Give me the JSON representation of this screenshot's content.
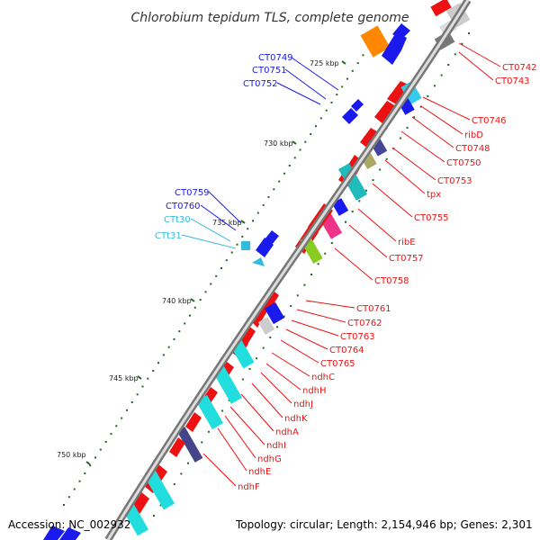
{
  "title": "Chlorobium tepidum TLS, complete genome",
  "footer": {
    "accession": "Accession: NC_002932",
    "summary": "Topology: circular; Length: 2,154,946 bp; Genes: 2,301"
  },
  "ticks": [
    "725 kbp",
    "730 kbp",
    "735 kbp",
    "740 kbp",
    "745 kbp",
    "750 kbp"
  ],
  "colors": {
    "cds_forward": "#1a1aee",
    "cds_reverse": "#ee1111",
    "trna": "#33bbdd",
    "backbone": "#888888",
    "gc_tick": "#226622"
  },
  "left_labels": [
    {
      "text": "CT0749",
      "kind": "cds_forward"
    },
    {
      "text": "CT0751",
      "kind": "cds_forward"
    },
    {
      "text": "CT0752",
      "kind": "cds_forward"
    },
    {
      "text": "CT0759",
      "kind": "cds_forward"
    },
    {
      "text": "CT0760",
      "kind": "cds_forward"
    },
    {
      "text": "CTt30",
      "kind": "trna"
    },
    {
      "text": "CTt31",
      "kind": "trna"
    }
  ],
  "right_labels": [
    "CT0742",
    "CT0743",
    "CT0746",
    "ribD",
    "CT0748",
    "CT0750",
    "CT0753",
    "tpx",
    "CT0755",
    "ribE",
    "CT0757",
    "CT0758",
    "CT0761",
    "CT0762",
    "CT0763",
    "CT0764",
    "CT0765",
    "ndhC",
    "ndhH",
    "ndhJ",
    "ndhK",
    "ndhA",
    "ndhI",
    "ndhG",
    "ndhE",
    "ndhF"
  ]
}
